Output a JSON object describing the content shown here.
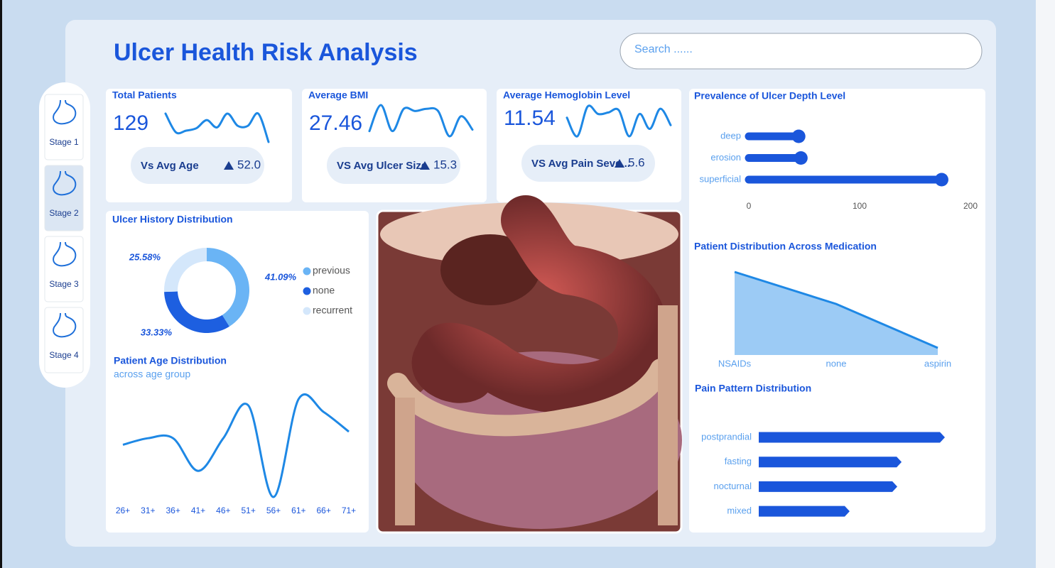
{
  "header": {
    "title": "Ulcer Health Risk Analysis",
    "search": "Search ......"
  },
  "nav": [
    "Stage 1",
    "Stage 2",
    "Stage 3",
    "Stage 4"
  ],
  "chart_data": [
    {
      "type": "kpi",
      "title": "Total Patients",
      "value": 129,
      "trend": [
        35,
        12,
        14,
        17,
        27,
        18,
        35,
        20,
        20,
        35,
        0
      ],
      "comparison": "Vs Avg Age",
      "comparison_value": {
        "value": 52,
        "label": "52.0"
      },
      "color": "#1e88e5"
    },
    {
      "type": "kpi",
      "title": "Average BMI",
      "value": 27.46,
      "trend": [
        7,
        42,
        7,
        37,
        34,
        37,
        34,
        0,
        27,
        9
      ],
      "comparison": "VS Avg Ulcer Size",
      "comparison_value": 15.3,
      "color": "#1e88e5"
    },
    {
      "type": "kpi",
      "title": "Average Hemoglobin Level",
      "value": 11.54,
      "trend": [
        25,
        0,
        40,
        30,
        32,
        35,
        0,
        30,
        10,
        37,
        15
      ],
      "comparison": "VS Avg Pain Seve...",
      "comparison_value": 5.6,
      "color": "#1e88e5"
    },
    {
      "type": "lollipop",
      "title": "Prevalence of Ulcer Depth Level",
      "categories": [
        "deep",
        "erosion",
        "superficial"
      ],
      "values": [
        45,
        47,
        174
      ],
      "xlim": [
        0,
        200
      ],
      "xticks": [
        0,
        100,
        200
      ],
      "color": "#1a56db"
    },
    {
      "type": "area",
      "title": "Patient Distribution Across Medication",
      "categories": [
        "NSAIDs",
        "none",
        "aspirin"
      ],
      "values": [
        70,
        43,
        6
      ],
      "color": "#1e88e5",
      "fill": "#9ccbf5"
    },
    {
      "type": "arrow-bar",
      "title": "Pain Pattern Distribution",
      "categories": [
        "postprandial",
        "fasting",
        "nocturnal",
        "mixed"
      ],
      "values": [
        43,
        33,
        32,
        21
      ],
      "color": "#1a56db"
    },
    {
      "type": "donut",
      "title": "Ulcer History Distribution",
      "categories": [
        "previous",
        "none",
        "recurrent"
      ],
      "values": [
        41.09,
        33.33,
        25.58
      ],
      "value_labels": [
        "41.09%",
        "33.33%",
        "25.58%"
      ],
      "colors": [
        "#6ab4f5",
        "#1d5fe0",
        "#d4e7fb"
      ]
    },
    {
      "type": "line",
      "title": "Patient Age Distribution",
      "subtitle": "across age group",
      "categories": [
        "26+",
        "31+",
        "36+",
        "41+",
        "46+",
        "51+",
        "56+",
        "61+",
        "66+",
        "71+"
      ],
      "values": [
        11,
        12,
        12,
        7,
        12,
        17,
        3,
        18,
        16,
        13
      ],
      "color": "#1e88e5"
    }
  ]
}
